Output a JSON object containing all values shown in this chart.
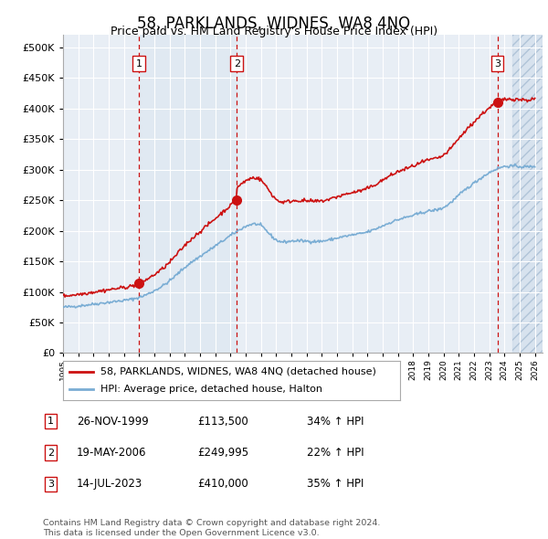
{
  "title": "58, PARKLANDS, WIDNES, WA8 4NQ",
  "subtitle": "Price paid vs. HM Land Registry's House Price Index (HPI)",
  "ytick_values": [
    0,
    50000,
    100000,
    150000,
    200000,
    250000,
    300000,
    350000,
    400000,
    450000,
    500000
  ],
  "ylim": [
    0,
    520000
  ],
  "xlim_start": 1995.0,
  "xlim_end": 2026.5,
  "sales": [
    {
      "year": 2000.0,
      "price": 113500,
      "label": "1"
    },
    {
      "year": 2006.42,
      "price": 249995,
      "label": "2"
    },
    {
      "year": 2023.54,
      "price": 410000,
      "label": "3"
    }
  ],
  "hatch_start": 2024.5,
  "legend_line1": "58, PARKLANDS, WIDNES, WA8 4NQ (detached house)",
  "legend_line2": "HPI: Average price, detached house, Halton",
  "table_rows": [
    {
      "num": "1",
      "date": "26-NOV-1999",
      "price": "£113,500",
      "hpi": "34% ↑ HPI"
    },
    {
      "num": "2",
      "date": "19-MAY-2006",
      "price": "£249,995",
      "hpi": "22% ↑ HPI"
    },
    {
      "num": "3",
      "date": "14-JUL-2023",
      "price": "£410,000",
      "hpi": "35% ↑ HPI"
    }
  ],
  "footer": "Contains HM Land Registry data © Crown copyright and database right 2024.\nThis data is licensed under the Open Government Licence v3.0.",
  "hpi_color": "#7aadd4",
  "price_color": "#cc1111",
  "plot_bg_color": "#e8eef5",
  "grid_color": "#ffffff",
  "hatch_color": "#c8d8e8",
  "shade_color": "#dce6f0",
  "title_fontsize": 12,
  "subtitle_fontsize": 9
}
